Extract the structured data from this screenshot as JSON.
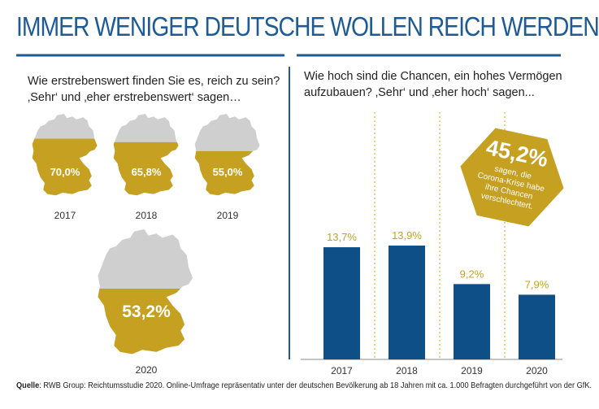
{
  "title": "IMMER WENIGER DEUTSCHE WOLLEN REICH WERDEN",
  "left": {
    "question_line1": "Wie erstrebenswert finden Sie es, reich zu sein?",
    "question_line2": "‚Sehr‘ und ‚eher erstrebenswert‘ sagen…",
    "maps": [
      {
        "year": "2017",
        "label": "70,0%",
        "value": 70.0
      },
      {
        "year": "2018",
        "label": "65,8%",
        "value": 65.8
      },
      {
        "year": "2019",
        "label": "55,0%",
        "value": 55.0
      },
      {
        "year": "2020",
        "label": "53,2%",
        "value": 53.2
      }
    ]
  },
  "right": {
    "question_line1": "Wie hoch sind die Chancen, ein hohes Vermögen",
    "question_line2": "aufzubauen? ‚Sehr‘ und ‚eher hoch‘ sagen...",
    "callout": {
      "value": "45,2%",
      "line1": "sagen, die",
      "line2": "Corona-Krise habe",
      "line3": "ihre Chancen",
      "line4": "verschlechtert."
    }
  },
  "chart_data": {
    "type": "bar",
    "categories": [
      "2017",
      "2018",
      "2019",
      "2020"
    ],
    "values": [
      13.7,
      13.9,
      9.2,
      7.9
    ],
    "labels": [
      "13,7%",
      "13,9%",
      "9,2%",
      "7,9%"
    ],
    "ylim": [
      0,
      20
    ]
  },
  "colors": {
    "blue": "#0f4f87",
    "gold": "#c6a021",
    "gray": "#cfcfcf",
    "title": "#1e5b94"
  },
  "source": {
    "label": "Quelle",
    "text": ": RWB Group: Reichtumsstudie 2020. Online-Umfrage repräsentativ unter der deutschen Bevölkerung ab 18 Jahren mit ca. 1.000 Befragten durchgeführt von der GfK."
  }
}
